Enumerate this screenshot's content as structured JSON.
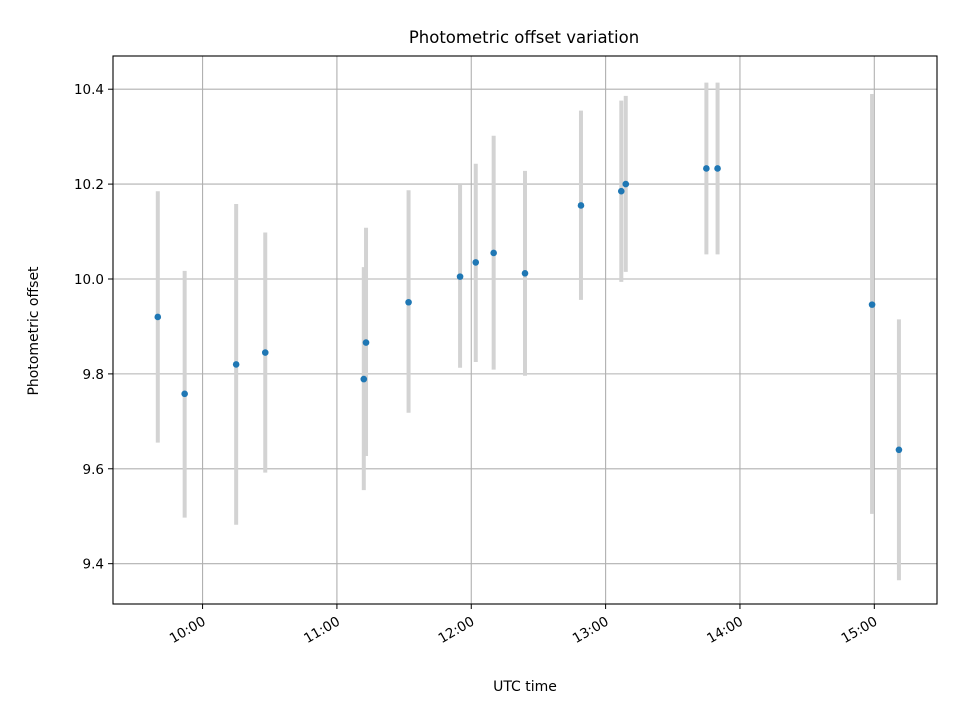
{
  "chart_data": {
    "type": "scatter",
    "title": "Photometric offset variation",
    "xlabel": "UTC time",
    "ylabel": "Photometric offset",
    "xlim": [
      "09:20",
      "15:28"
    ],
    "ylim": [
      9.315,
      10.47
    ],
    "x_ticks": [
      "10:00",
      "11:00",
      "12:00",
      "13:00",
      "14:00",
      "15:00"
    ],
    "y_ticks": [
      "9.4",
      "9.6",
      "9.8",
      "10.0",
      "10.2",
      "10.4"
    ],
    "grid": true,
    "colors": {
      "point": "#1f77b4",
      "error_bar": "#d3d3d3"
    },
    "points": [
      {
        "time": "09:40",
        "y": 9.92,
        "err_low": 9.655,
        "err_high": 10.185
      },
      {
        "time": "09:52",
        "y": 9.758,
        "err_low": 9.497,
        "err_high": 10.017
      },
      {
        "time": "10:15",
        "y": 9.82,
        "err_low": 9.482,
        "err_high": 10.158
      },
      {
        "time": "10:28",
        "y": 9.845,
        "err_low": 9.592,
        "err_high": 10.098
      },
      {
        "time": "11:12",
        "y": 9.789,
        "err_low": 9.555,
        "err_high": 10.025
      },
      {
        "time": "11:13",
        "y": 9.866,
        "err_low": 9.627,
        "err_high": 10.108
      },
      {
        "time": "11:32",
        "y": 9.951,
        "err_low": 9.718,
        "err_high": 10.187
      },
      {
        "time": "11:55",
        "y": 10.005,
        "err_low": 9.813,
        "err_high": 10.2
      },
      {
        "time": "12:02",
        "y": 10.035,
        "err_low": 9.825,
        "err_high": 10.243
      },
      {
        "time": "12:10",
        "y": 10.055,
        "err_low": 9.809,
        "err_high": 10.302
      },
      {
        "time": "12:24",
        "y": 10.012,
        "err_low": 9.796,
        "err_high": 10.228
      },
      {
        "time": "12:49",
        "y": 10.155,
        "err_low": 9.956,
        "err_high": 10.355
      },
      {
        "time": "13:07",
        "y": 10.185,
        "err_low": 9.994,
        "err_high": 10.376
      },
      {
        "time": "13:09",
        "y": 10.2,
        "err_low": 10.015,
        "err_high": 10.386
      },
      {
        "time": "13:45",
        "y": 10.233,
        "err_low": 10.052,
        "err_high": 10.414
      },
      {
        "time": "13:50",
        "y": 10.233,
        "err_low": 10.052,
        "err_high": 10.414
      },
      {
        "time": "14:59",
        "y": 9.946,
        "err_low": 9.505,
        "err_high": 10.39
      },
      {
        "time": "15:11",
        "y": 9.64,
        "err_low": 9.365,
        "err_high": 9.915
      }
    ]
  }
}
